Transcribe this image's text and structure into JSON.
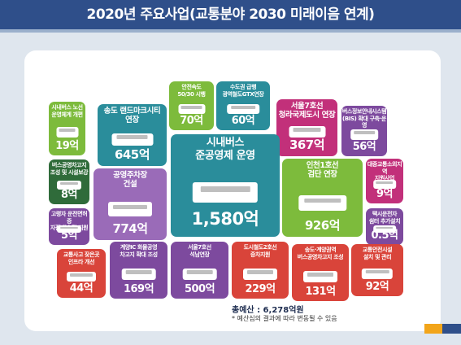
{
  "header": {
    "title": "2020년 주요사업(교통분야 2030 미래이음 연계)"
  },
  "tiles": [
    {
      "label": [
        "시내버스 노선",
        "운영체계 개편"
      ],
      "amount": "19억"
    },
    {
      "label": [
        "송도 랜드마크시티",
        "연장"
      ],
      "amount": "645억"
    },
    {
      "label": [
        "안전속도",
        "50/30 시행"
      ],
      "amount": "70억"
    },
    {
      "label": [
        "수도권 급행",
        "광역철도GTX연장"
      ],
      "amount": "60억"
    },
    {
      "label": [
        "서울7호선",
        "청라국제도시 연장"
      ],
      "amount": "367억"
    },
    {
      "label": [
        "버스정보안내시스템",
        "(BIS) 확대 구축·운영"
      ],
      "amount": "56억"
    },
    {
      "label": [
        "버스공영차고지",
        "조성 및 시설보강"
      ],
      "amount": "8억"
    },
    {
      "label": [
        "공영주차장",
        "건설"
      ],
      "amount": "774억"
    },
    {
      "label": [
        "시내버스",
        "준공영제 운영"
      ],
      "amount": "1,580억"
    },
    {
      "label": [
        "인천1호선",
        "검단 연장"
      ],
      "amount": "926억"
    },
    {
      "label": [
        "대중교통소외지역",
        "지원사업"
      ],
      "amount": "9억"
    },
    {
      "label": [
        "고령자 운전면허증",
        "자진반납 및 지원"
      ],
      "amount": "5억"
    },
    {
      "label": [
        "택시운전자",
        "쉼터 추가설치"
      ],
      "amount": "0.5억"
    },
    {
      "label": [
        "교통사고 잦은곳",
        "인프라 개선"
      ],
      "amount": "44억"
    },
    {
      "label": [
        "계양IC 화물공영",
        "차고지 확대 조성"
      ],
      "amount": "169억"
    },
    {
      "label": [
        "서울7호선",
        "석남연장"
      ],
      "amount": "500억"
    },
    {
      "label": [
        "도시철도2호선",
        "증차지원"
      ],
      "amount": "229억"
    },
    {
      "label": [
        "송도·계양권역",
        "버스공영차고지 조성"
      ],
      "amount": "131억"
    },
    {
      "label": [
        "교통안전시설",
        "설치 및 관리"
      ],
      "amount": "92억"
    }
  ],
  "total": "총예산 : 6,278억원",
  "note": "* 예산심의 결과에 따라 변동될 수 있음"
}
